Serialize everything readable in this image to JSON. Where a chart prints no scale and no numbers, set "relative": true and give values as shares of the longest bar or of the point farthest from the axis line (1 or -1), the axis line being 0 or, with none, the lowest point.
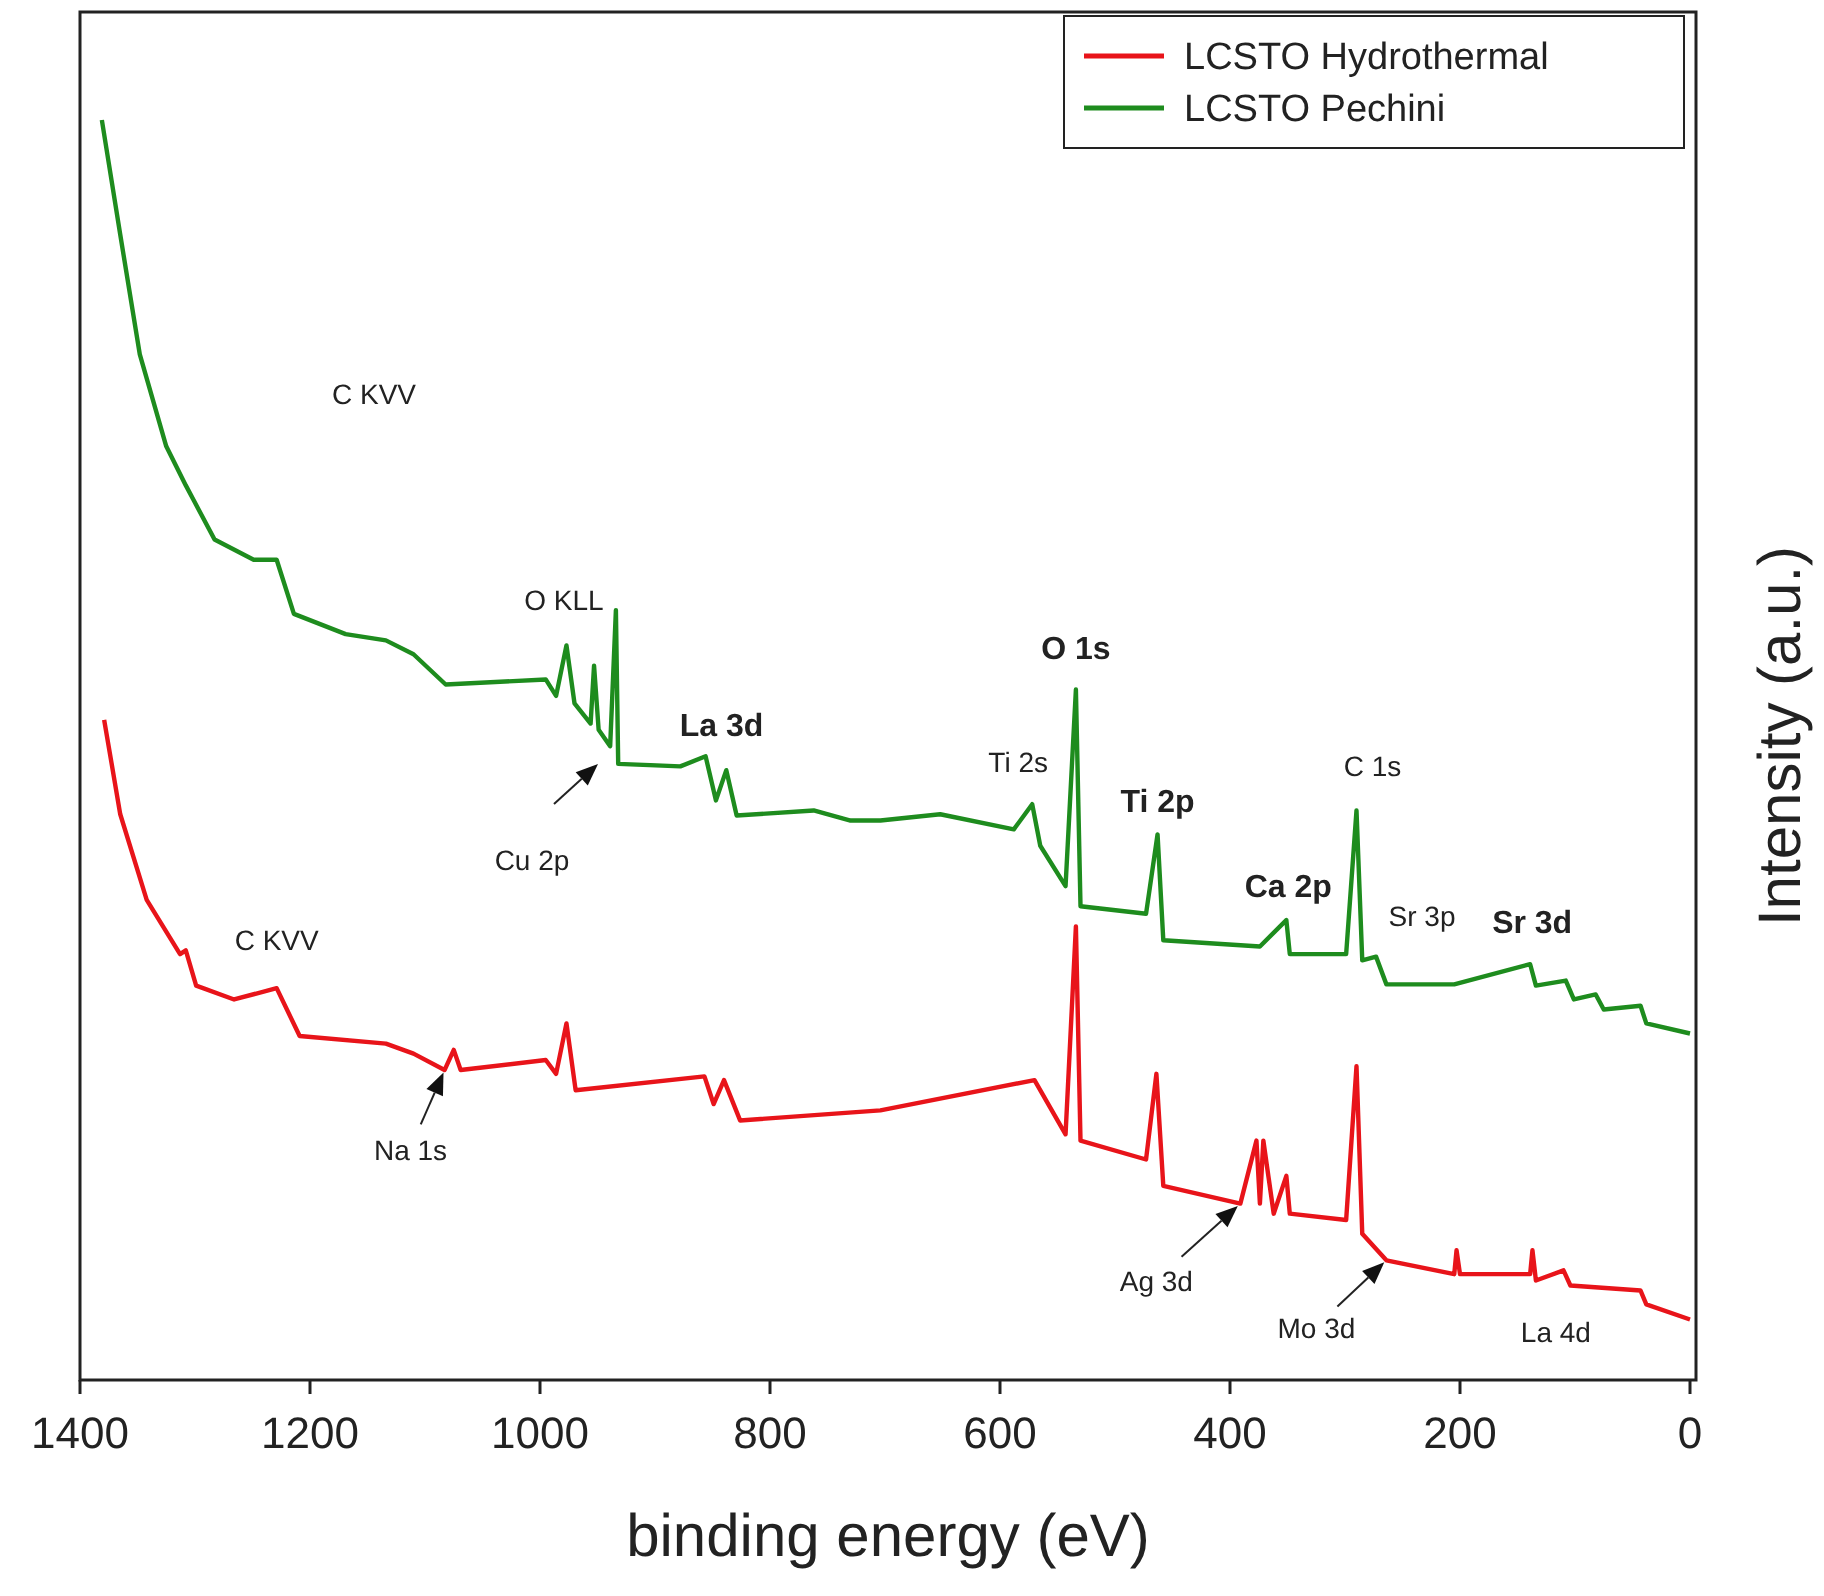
{
  "chart_data": {
    "type": "line",
    "xlabel": "binding energy (eV)",
    "ylabel": "Intensity (a.u.)",
    "relative": true,
    "xlim": [
      1400,
      0
    ],
    "xticks": [
      1400,
      1200,
      1000,
      800,
      600,
      400,
      200,
      0
    ],
    "legend": "top right",
    "grid": false,
    "series": [
      {
        "name": "LCSTO Hydrothermal",
        "color": "#e8141a",
        "x": [
          1379,
          1365,
          1342,
          1313,
          1308,
          1299,
          1266,
          1229,
          1209,
          1134,
          1110,
          1083,
          1075,
          1069,
          995,
          986,
          977,
          969,
          857,
          849,
          840,
          826,
          704,
          570,
          543,
          534,
          530,
          473,
          464,
          458,
          391,
          377,
          374,
          371,
          362,
          351,
          348,
          299,
          290,
          285,
          264,
          205,
          203,
          200,
          139,
          137,
          134,
          110,
          104,
          43,
          38,
          0
        ],
        "values": [
          0.524,
          0.449,
          0.381,
          0.338,
          0.341,
          0.313,
          0.302,
          0.311,
          0.273,
          0.267,
          0.259,
          0.246,
          0.262,
          0.246,
          0.254,
          0.243,
          0.283,
          0.23,
          0.241,
          0.219,
          0.238,
          0.206,
          0.214,
          0.238,
          0.195,
          0.36,
          0.19,
          0.175,
          0.243,
          0.154,
          0.14,
          0.19,
          0.14,
          0.19,
          0.132,
          0.162,
          0.132,
          0.127,
          0.249,
          0.116,
          0.095,
          0.084,
          0.103,
          0.084,
          0.084,
          0.103,
          0.079,
          0.087,
          0.075,
          0.071,
          0.06,
          0.048
        ]
      },
      {
        "name": "LCSTO Pechini",
        "color": "#1e8c1e",
        "x": [
          1381,
          1365,
          1348,
          1325,
          1308,
          1301,
          1283,
          1249,
          1229,
          1214,
          1169,
          1134,
          1110,
          1082,
          995,
          986,
          977,
          970,
          956,
          953,
          949,
          939,
          934,
          932,
          878,
          856,
          847,
          838,
          829,
          762,
          730,
          704,
          652,
          588,
          572,
          565,
          543,
          534,
          530,
          473,
          463,
          458,
          374,
          351,
          348,
          299,
          290,
          285,
          273,
          264,
          205,
          139,
          134,
          108,
          101,
          82,
          75,
          43,
          38,
          0
        ],
        "values": [
          1.0,
          0.909,
          0.814,
          0.741,
          0.71,
          0.698,
          0.667,
          0.651,
          0.651,
          0.608,
          0.592,
          0.587,
          0.576,
          0.552,
          0.556,
          0.543,
          0.583,
          0.537,
          0.521,
          0.567,
          0.516,
          0.503,
          0.611,
          0.489,
          0.487,
          0.495,
          0.46,
          0.484,
          0.448,
          0.452,
          0.444,
          0.444,
          0.449,
          0.437,
          0.457,
          0.424,
          0.392,
          0.548,
          0.376,
          0.37,
          0.433,
          0.349,
          0.344,
          0.365,
          0.338,
          0.338,
          0.452,
          0.333,
          0.336,
          0.314,
          0.314,
          0.33,
          0.313,
          0.317,
          0.302,
          0.306,
          0.294,
          0.297,
          0.283,
          0.275
        ]
      }
    ],
    "annotations": [
      "C KVV",
      {
        "text": "O KLL",
        "x": 934,
        "y": 0.611
      },
      "Cu 2p",
      {
        "text": "La 3d",
        "x": 856,
        "y": 0.495
      },
      {
        "text": "O 1s",
        "x": 534,
        "y": 0.548
      },
      {
        "text": "Ti 2s",
        "x": 572,
        "y": 0.457
      },
      {
        "text": "Ti 2p",
        "x": 463,
        "y": 0.433
      },
      {
        "text": "C 1s",
        "x": 290,
        "y": 0.452
      },
      {
        "text": "Ca 2p",
        "x": 351,
        "y": 0.365
      },
      {
        "text": "Sr 3p",
        "x": 273,
        "y": 0.336
      },
      {
        "text": "Sr 3d",
        "x": 139,
        "y": 0.33
      },
      {
        "text": "C KVV",
        "x": 1229,
        "y": 0.311
      },
      {
        "text": "Na 1s",
        "x": 1083,
        "y": 0.246
      },
      {
        "text": "Ag 3d",
        "x": 391,
        "y": 0.14
      },
      {
        "text": "Mo 3d",
        "x": 264,
        "y": 0.095
      },
      {
        "text": "La 4d",
        "x": 134,
        "y": 0.079
      }
    ]
  }
}
